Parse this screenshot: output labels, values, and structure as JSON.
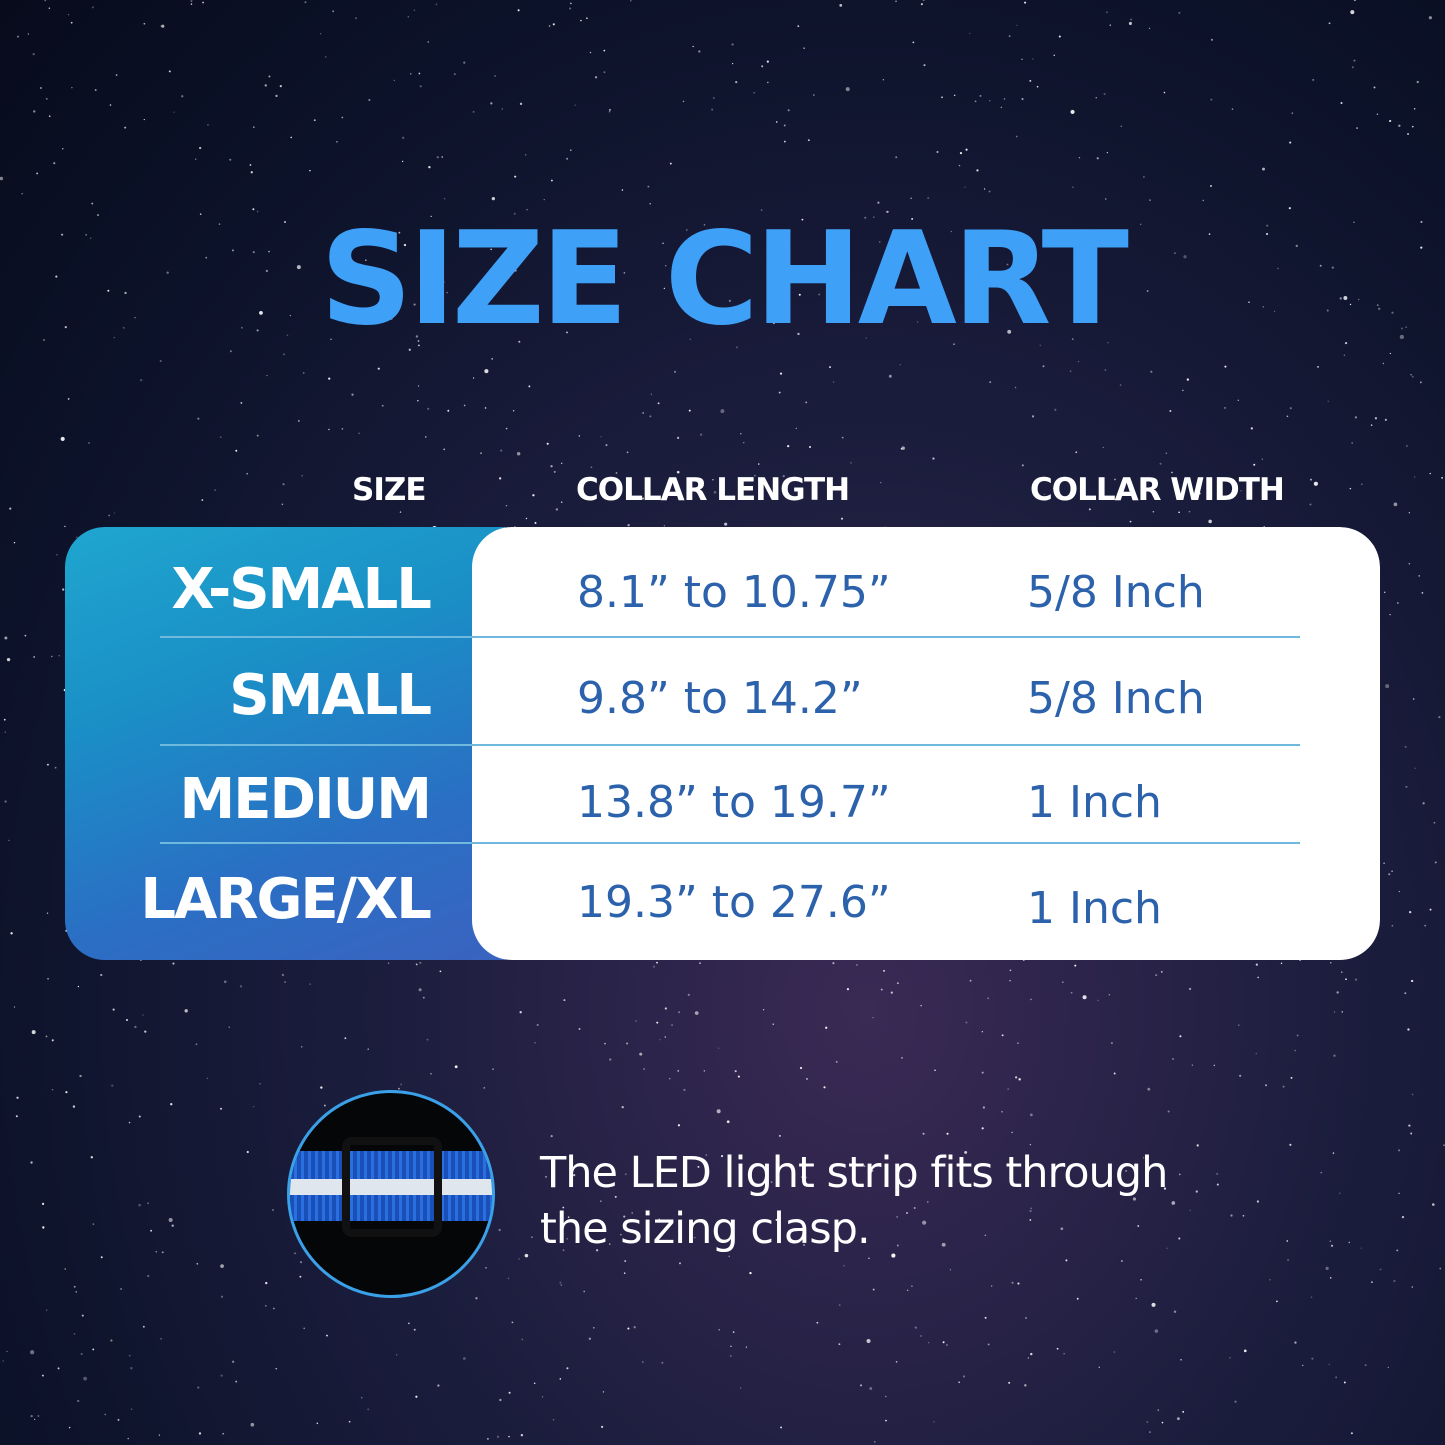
{
  "title": "SIZE CHART",
  "headers": {
    "size": "SIZE",
    "length": "COLLAR LENGTH",
    "width": "COLLAR WIDTH"
  },
  "rows": [
    {
      "size": "X-SMALL",
      "length": "8.1” to 10.75”",
      "width": "5/8 Inch"
    },
    {
      "size": "SMALL",
      "length": "9.8” to 14.2”",
      "width": "5/8 Inch"
    },
    {
      "size": "MEDIUM",
      "length": "13.8” to 19.7”",
      "width": "1 Inch"
    },
    {
      "size": "LARGE/XL",
      "length": "19.3” to 27.6”",
      "width": "1 Inch"
    }
  ],
  "note": {
    "line1": "The LED light strip fits through",
    "line2": "the sizing clasp."
  },
  "colors": {
    "title": "#3ea0f7",
    "value_text": "#2c61ab",
    "divider": "#6fb8de"
  },
  "image": {
    "icon": "collar-clasp-photo"
  }
}
